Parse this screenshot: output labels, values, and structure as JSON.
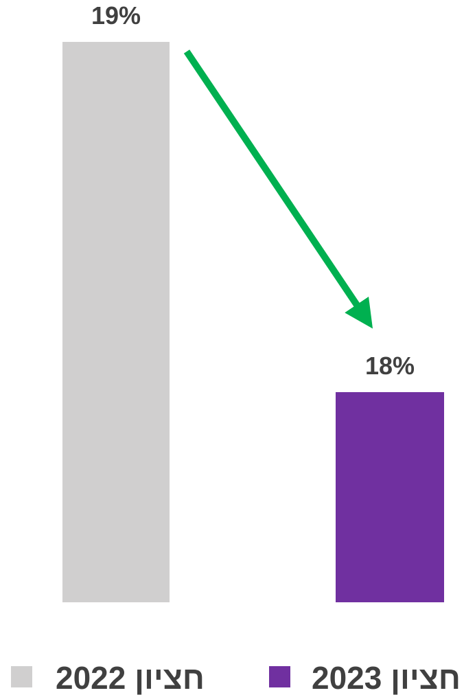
{
  "chart_data": {
    "type": "bar",
    "categories": [
      "חציון 2022",
      "חציון 2023"
    ],
    "values": [
      19,
      18
    ],
    "value_labels": [
      "19%",
      "18%"
    ],
    "colors": [
      "#d0cfcf",
      "#7030a0"
    ],
    "trend_arrow_color": "#00b050",
    "title": "",
    "xlabel": "",
    "ylabel": "",
    "legend": {
      "position": "bottom",
      "entries": [
        {
          "label": "חציון 2022",
          "color": "#d0cfcf"
        },
        {
          "label": "חציון 2023",
          "color": "#7030a0"
        }
      ]
    },
    "grid": false
  }
}
